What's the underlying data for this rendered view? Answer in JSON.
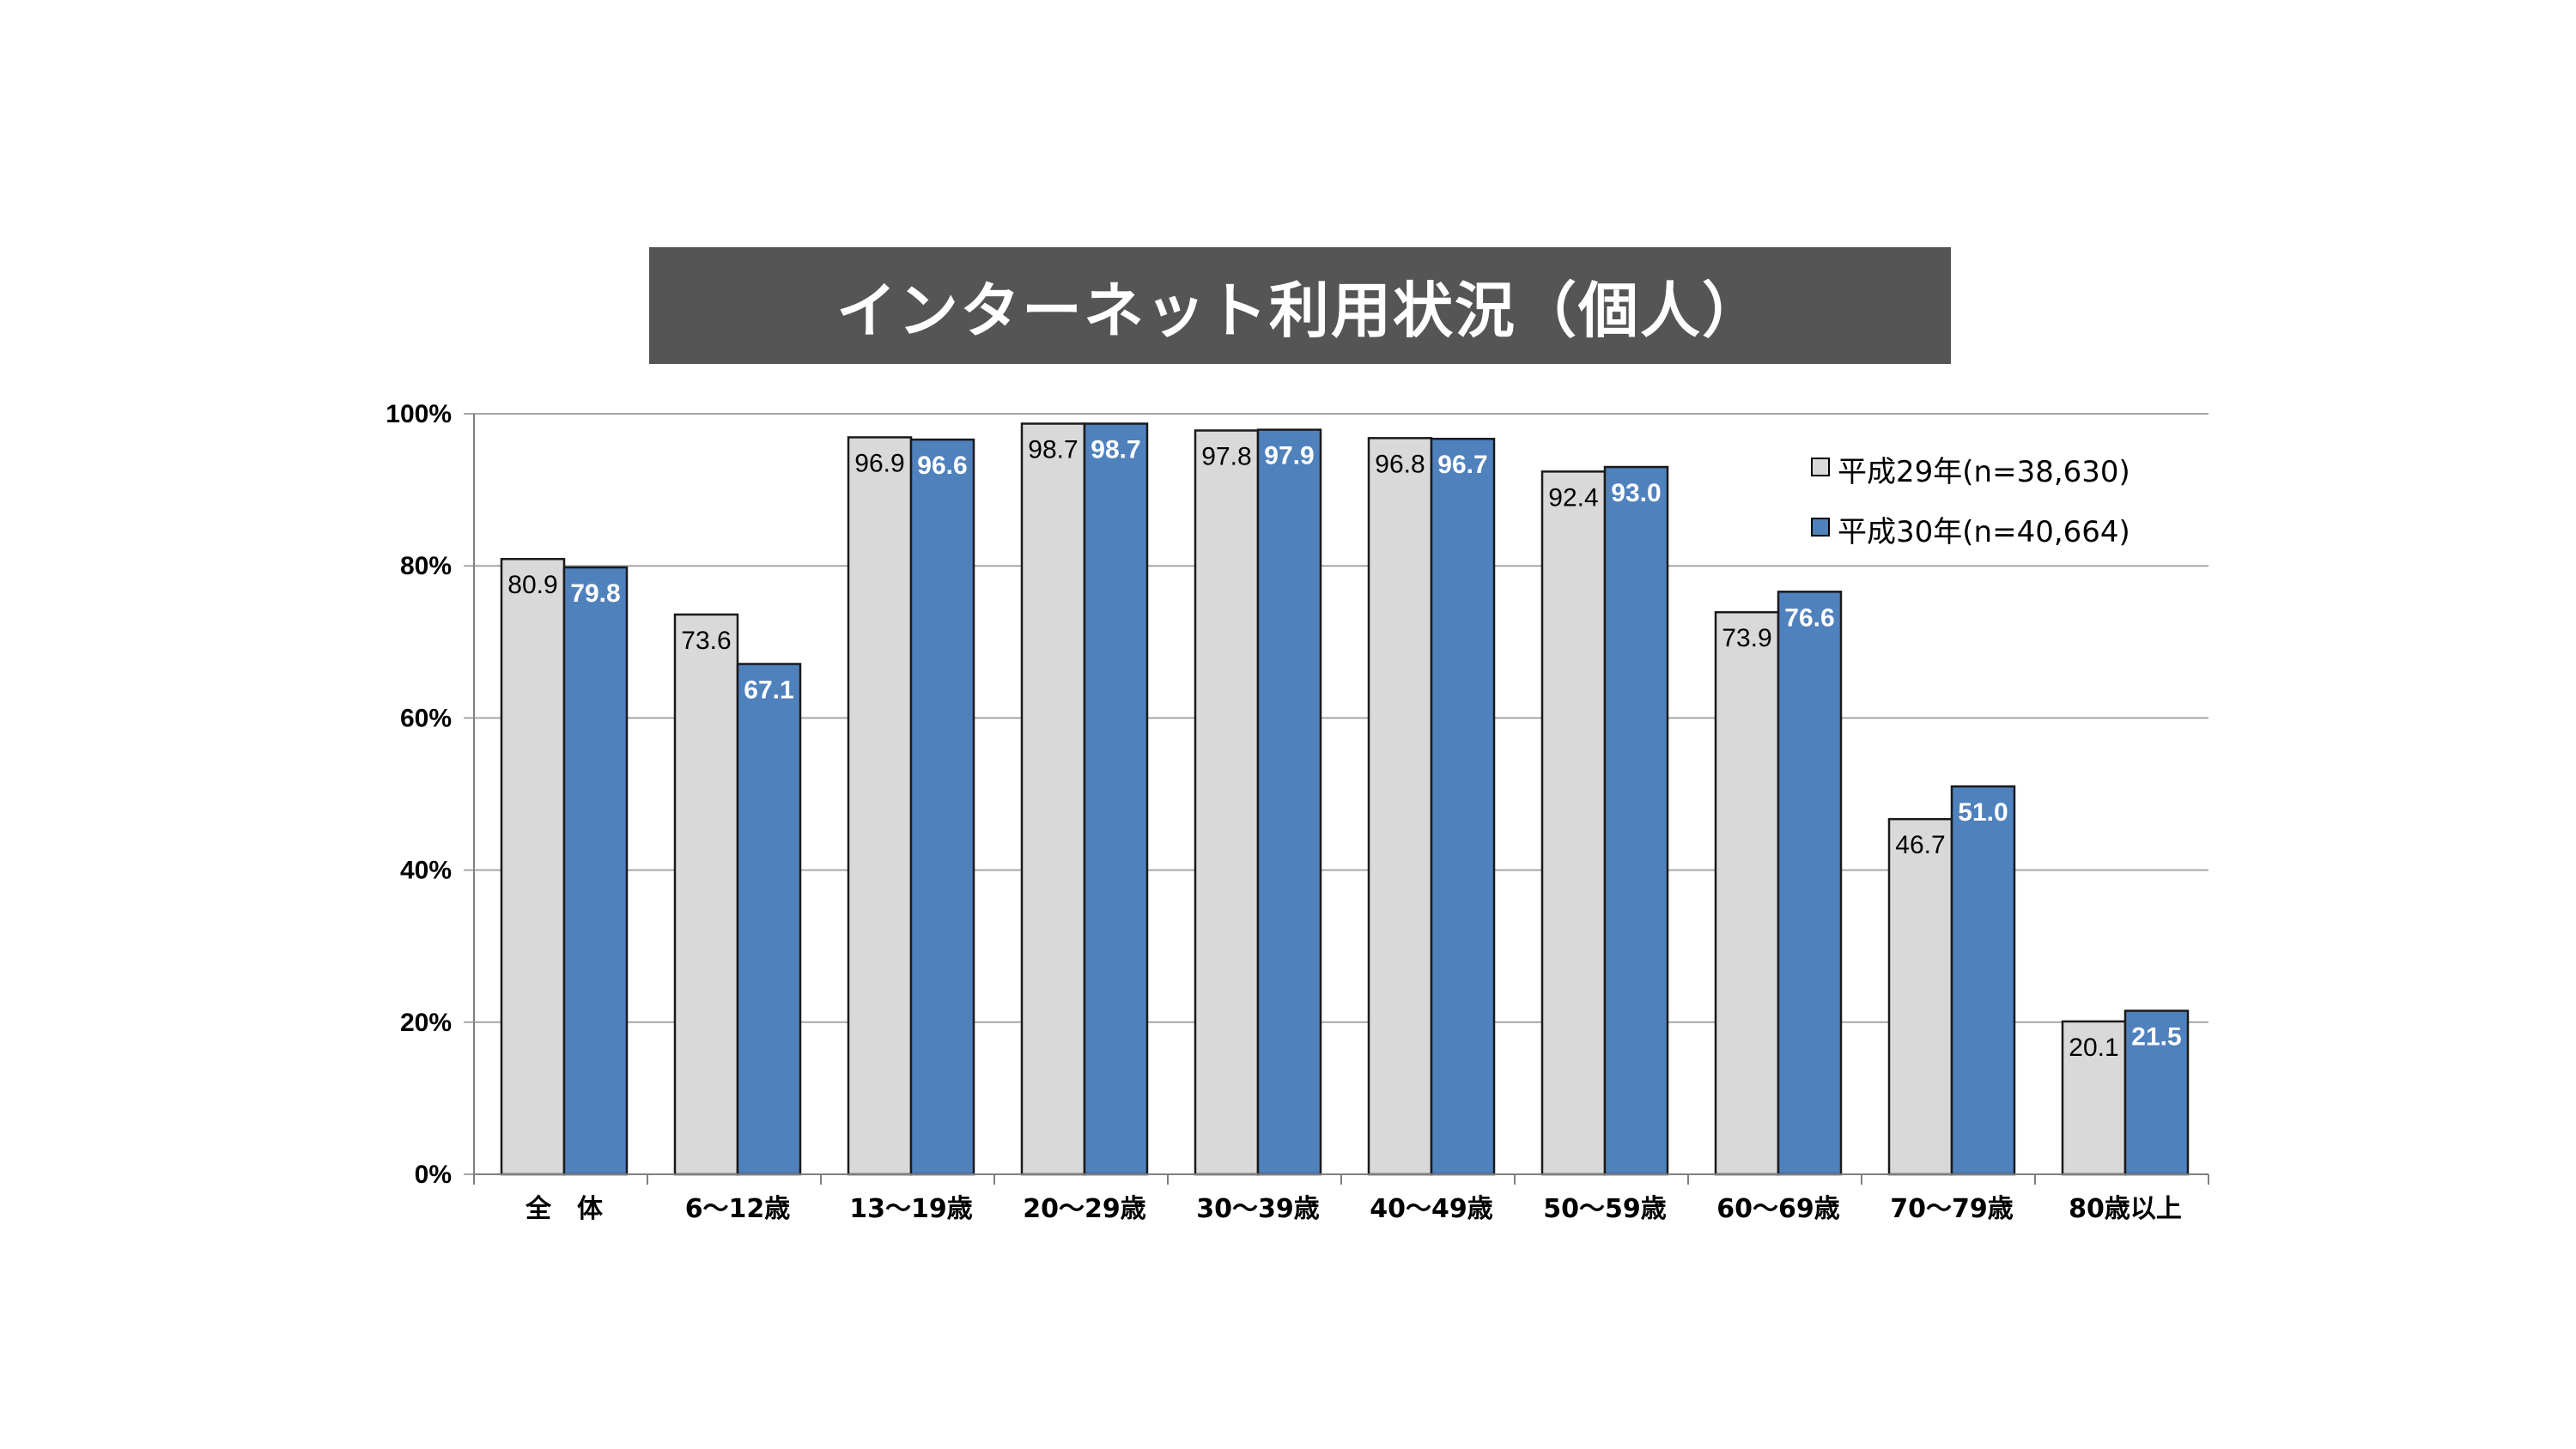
{
  "chart_data": {
    "type": "bar",
    "title": "インターネット利用状況（個人）",
    "categories": [
      "全　体",
      "6～12歳",
      "13～19歳",
      "20～29歳",
      "30～39歳",
      "40～49歳",
      "50～59歳",
      "60～69歳",
      "70～79歳",
      "80歳以上"
    ],
    "series": [
      {
        "name": "平成29年(n=38,630)",
        "color": "#d9d9d9",
        "values": [
          80.9,
          73.6,
          96.9,
          98.7,
          97.8,
          96.8,
          92.4,
          73.9,
          46.7,
          20.1
        ],
        "labels": [
          "80.9",
          "73.6",
          "96.9",
          "98.7",
          "97.8",
          "96.8",
          "92.4",
          "73.9",
          "46.7",
          "20.1"
        ]
      },
      {
        "name": "平成30年(n=40,664)",
        "color": "#4f81bd",
        "values": [
          79.8,
          67.1,
          96.6,
          98.7,
          97.9,
          96.7,
          93.0,
          76.6,
          51.0,
          21.5
        ],
        "labels": [
          "79.8",
          "67.1",
          "96.6",
          "98.7",
          "97.9",
          "96.7",
          "93.0",
          "76.6",
          "51.0",
          "21.5"
        ]
      }
    ],
    "ylim": [
      0,
      100
    ],
    "yticks": [
      "0%",
      "20%",
      "40%",
      "60%",
      "80%",
      "100%"
    ],
    "ytick_values": [
      0,
      20,
      40,
      60,
      80,
      100
    ],
    "xlabel": "",
    "ylabel": "",
    "grid": true,
    "legend_position": "top-right"
  }
}
